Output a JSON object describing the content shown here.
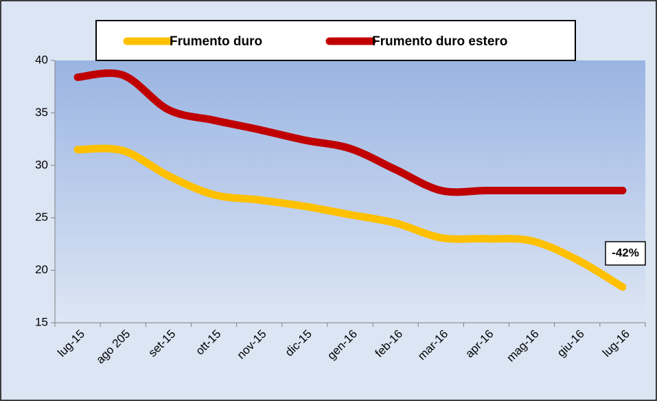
{
  "chart_data": {
    "type": "line",
    "categories": [
      "lug-15",
      "ago 205",
      "set-15",
      "ott-15",
      "nov-15",
      "dic-15",
      "gen-16",
      "feb-16",
      "mar-16",
      "apr-16",
      "mag-16",
      "giu-16",
      "lug-16"
    ],
    "series": [
      {
        "name": "Frumento duro",
        "color": "#ffc000",
        "values": [
          31.5,
          31.4,
          29.0,
          27.2,
          26.7,
          26.1,
          25.3,
          24.5,
          23.1,
          23.0,
          22.8,
          21.0,
          18.4
        ]
      },
      {
        "name": "Frumento duro estero",
        "color": "#c00000",
        "values": [
          38.4,
          38.6,
          35.3,
          34.3,
          33.4,
          32.4,
          31.6,
          29.6,
          27.6,
          27.6,
          27.6,
          27.6,
          27.6
        ]
      }
    ],
    "ylim": [
      15,
      40
    ],
    "yticks": [
      15,
      20,
      25,
      30,
      35,
      40
    ],
    "annotation": "-42%",
    "legend": "top"
  }
}
